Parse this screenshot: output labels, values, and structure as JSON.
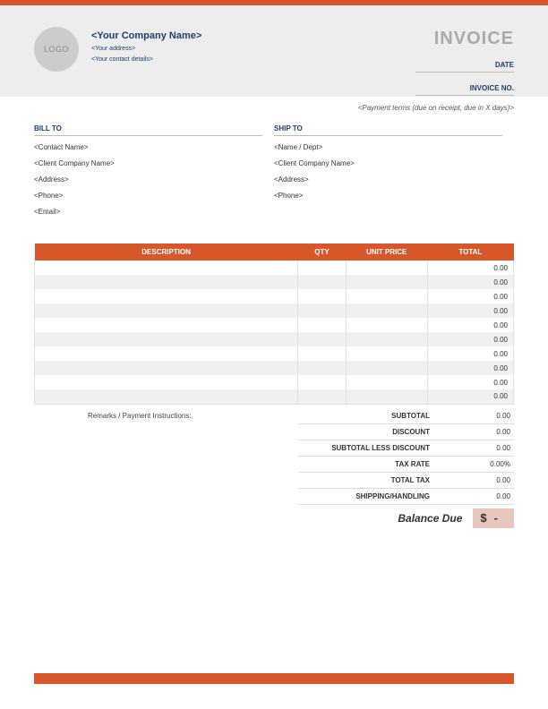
{
  "colors": {
    "accent": "#d8572a",
    "header_bg": "#ededed",
    "heading_text": "#1f3e6e",
    "invoice_title": "#aaaaaa",
    "balance_bg": "#e9c6bd",
    "stripe": "#f0f0f0",
    "border": "#e0e0e0"
  },
  "header": {
    "logo_text": "LOGO",
    "company_name": "<Your Company Name>",
    "company_address": "<Your address>",
    "company_contact": "<Your contact details>",
    "invoice_title": "INVOICE",
    "date_label": "DATE",
    "invoice_no_label": "INVOICE NO."
  },
  "payment_terms": "<Payment terms (due on receipt, due in X days)>",
  "bill_to": {
    "heading": "BILL TO",
    "lines": [
      "<Contact Name>",
      "<Client Company Name>",
      "<Address>",
      "<Phone>",
      "<Email>"
    ]
  },
  "ship_to": {
    "heading": "SHIP TO",
    "lines": [
      "<Name / Dept>",
      "<Client Company Name>",
      "<Address>",
      "<Phone>"
    ]
  },
  "table": {
    "columns": [
      "DESCRIPTION",
      "QTY",
      "UNIT PRICE",
      "TOTAL"
    ],
    "row_count": 10,
    "default_total": "0.00"
  },
  "remarks_label": "Remarks / Payment Instructions:",
  "summary": [
    {
      "label": "SUBTOTAL",
      "value": "0.00"
    },
    {
      "label": "DISCOUNT",
      "value": "0.00"
    },
    {
      "label": "SUBTOTAL LESS DISCOUNT",
      "value": "0.00"
    },
    {
      "label": "TAX RATE",
      "value": "0.00%"
    },
    {
      "label": "TOTAL TAX",
      "value": "0.00"
    },
    {
      "label": "SHIPPING/HANDLING",
      "value": "0.00"
    }
  ],
  "balance": {
    "label": "Balance Due",
    "currency": "$",
    "value": "-"
  }
}
